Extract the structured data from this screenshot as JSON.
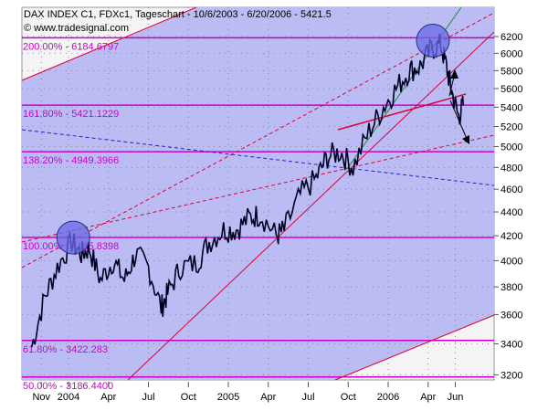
{
  "header": {
    "title": "DAX INDEX C1, FDXc1, Tageschart - 10/6/2003 - 6/20/2006 - 5421.5",
    "copyright": "© www.tradesignal.com",
    "icon": "candle-icon"
  },
  "colors": {
    "plot_bg": "#bcbcf4",
    "outside": "#f4f4f4",
    "fib": "#cc00cc",
    "trend": "#dd0033",
    "price": "#000022",
    "blue_dash": "#2222cc",
    "green": "#1a8a3a",
    "circle": "#6a6ae8"
  },
  "chart_data": {
    "type": "line",
    "title": "DAX INDEX C1, FDXc1, Tageschart - 10/6/2003 - 6/20/2006 - 5421.5",
    "yscale": "log",
    "ylim": [
      3150,
      6700
    ],
    "yticks": [
      3200,
      3400,
      3600,
      3800,
      4000,
      4200,
      4400,
      4600,
      4800,
      5000,
      5200,
      5400,
      5600,
      5800,
      6000,
      6200
    ],
    "xticks": [
      {
        "label": "Nov",
        "t": 2003.83
      },
      {
        "label": "2004",
        "t": 2004.0
      },
      {
        "label": "Apr",
        "t": 2004.25
      },
      {
        "label": "Jul",
        "t": 2004.5
      },
      {
        "label": "Oct",
        "t": 2004.75
      },
      {
        "label": "2005",
        "t": 2005.0
      },
      {
        "label": "Apr",
        "t": 2005.25
      },
      {
        "label": "Jul",
        "t": 2005.5
      },
      {
        "label": "Oct",
        "t": 2005.75
      },
      {
        "label": "2006",
        "t": 2006.0
      },
      {
        "label": "Apr",
        "t": 2006.25
      },
      {
        "label": "Jun",
        "t": 2006.42
      }
    ],
    "fib_levels": [
      {
        "label": "200.00% - 6184.6797",
        "value": 6184.68
      },
      {
        "label": "161.80% - 5421.1229",
        "value": 5421.12
      },
      {
        "label": "138.20% - 4949.3966",
        "value": 4949.4
      },
      {
        "label": "100.00% - 4185.8398",
        "value": 4185.84
      },
      {
        "label": "61.80% - 3422.283",
        "value": 3422.28
      },
      {
        "label": "50.00% - 3186.4400",
        "value": 3186.44
      }
    ],
    "series": [
      {
        "name": "DAX INDEX C1",
        "t": [
          2003.77,
          2003.85,
          2003.93,
          2004.02,
          2004.08,
          2004.13,
          2004.2,
          2004.28,
          2004.35,
          2004.42,
          2004.5,
          2004.58,
          2004.62,
          2004.7,
          2004.8,
          2004.88,
          2004.97,
          2005.05,
          2005.13,
          2005.2,
          2005.3,
          2005.35,
          2005.45,
          2005.55,
          2005.62,
          2005.7,
          2005.78,
          2005.88,
          2005.97,
          2006.05,
          2006.13,
          2006.2,
          2006.27,
          2006.33,
          2006.37,
          2006.4,
          2006.44,
          2006.47
        ],
        "values": [
          3380,
          3720,
          3950,
          4150,
          4050,
          4100,
          3850,
          4000,
          3850,
          4050,
          3950,
          3650,
          3750,
          3950,
          3980,
          4150,
          4250,
          4250,
          4350,
          4380,
          4200,
          4250,
          4550,
          4700,
          4900,
          4950,
          4800,
          5150,
          5400,
          5600,
          5800,
          5850,
          6050,
          6100,
          5800,
          5550,
          5300,
          5421.5
        ]
      }
    ],
    "circles": [
      {
        "t": 2004.03,
        "value": 4185
      },
      {
        "t": 2006.28,
        "value": 6150
      }
    ]
  }
}
